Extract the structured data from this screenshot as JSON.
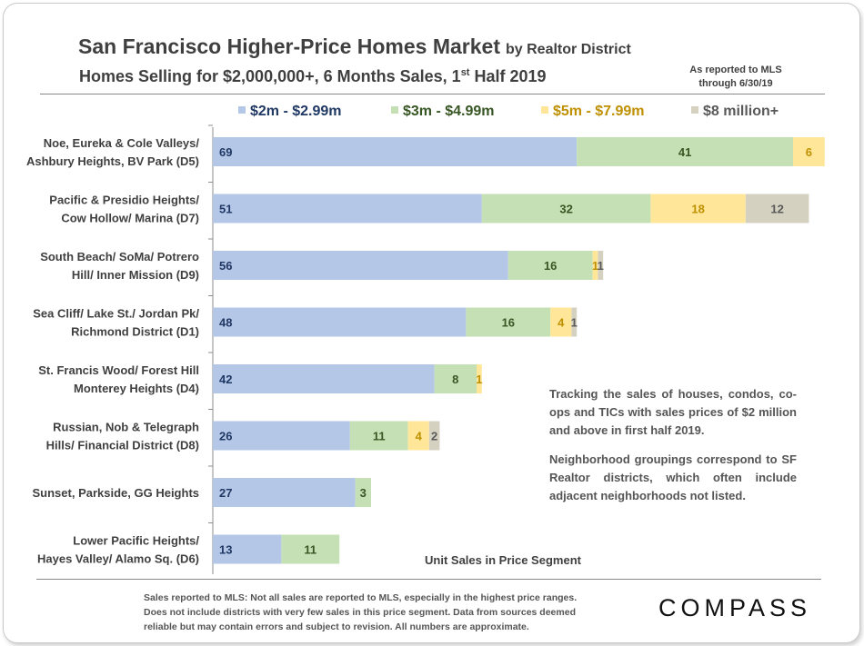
{
  "header": {
    "title": "San Francisco Higher-Price Homes Market",
    "title_suffix": "by Realtor District",
    "subtitle_main": "Homes Selling for $2,000,000+, 6 Months Sales, 1",
    "subtitle_sup": "st",
    "subtitle_end": " Half 2019",
    "mls_note_line1": "As reported to MLS",
    "mls_note_line2": "through 6/30/19"
  },
  "chart_data": {
    "type": "bar",
    "orientation": "horizontal",
    "stacked": true,
    "title": "",
    "xlabel": "Unit Sales in Price Segment",
    "ylabel": "",
    "xlim": [
      0,
      120
    ],
    "grid": false,
    "legend_position": "top",
    "categories": [
      [
        "Noe, Eureka & Cole Valleys/",
        "Ashbury Heights, BV Park (D5)"
      ],
      [
        "Pacific & Presidio Heights/",
        "Cow Hollow/ Marina (D7)"
      ],
      [
        "South Beach/ SoMa/ Potrero",
        "Hill/ Inner Mission  (D9)"
      ],
      [
        "Sea Cliff/ Lake St./ Jordan Pk/",
        "Richmond District (D1)"
      ],
      [
        "St. Francis Wood/ Forest Hill",
        "Monterey Heights (D4)"
      ],
      [
        "Russian, Nob & Telegraph",
        "Hills/ Financial District (D8)"
      ],
      [
        "Sunset, Parkside, GG Heights"
      ],
      [
        "Lower Pacific Heights/",
        "Hayes Valley/ Alamo Sq. (D6)"
      ]
    ],
    "series": [
      {
        "name": "$2m - $2.99m",
        "color": "#b4c7e7",
        "label_color": "#203864",
        "values": [
          69,
          51,
          56,
          48,
          42,
          26,
          27,
          13
        ]
      },
      {
        "name": "$3m - $4.99m",
        "color": "#c5e0b4",
        "label_color": "#375623",
        "values": [
          41,
          32,
          16,
          16,
          8,
          11,
          3,
          11
        ]
      },
      {
        "name": "$5m - $7.99m",
        "color": "#ffe699",
        "label_color": "#bf9000",
        "values": [
          6,
          18,
          1,
          4,
          1,
          4,
          0,
          0
        ]
      },
      {
        "name": "$8 million+",
        "color": "#d5d1c1",
        "label_color": "#595959",
        "values": [
          0,
          12,
          1,
          1,
          0,
          2,
          0,
          0
        ]
      }
    ]
  },
  "note": {
    "paragraph1": "Tracking the sales of houses, condos, co-ops and TICs with sales prices of $2 million and above in first half 2019.",
    "paragraph2": "Neighborhood groupings correspond to SF Realtor districts, which often include adjacent neighborhoods not listed."
  },
  "footer": {
    "line1": "Sales reported to MLS: Not all sales are reported to MLS, especially in the highest price ranges.",
    "line2": "Does not include districts with very few sales in this price segment. Data from sources deemed",
    "line3": "reliable but may contain errors and subject to revision. All numbers are approximate."
  },
  "logo": {
    "text": "COMPASS"
  }
}
